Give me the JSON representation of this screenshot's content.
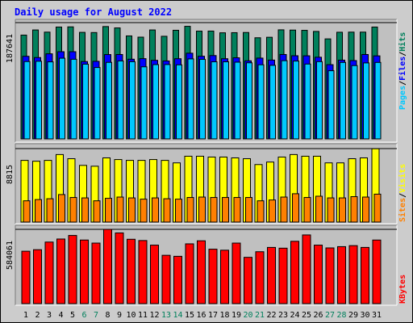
{
  "chart_data": [
    {
      "type": "bar",
      "title": "Daily usage for August 2022",
      "panel": "hits-files-pages",
      "categories": [
        "1",
        "2",
        "3",
        "4",
        "5",
        "6",
        "7",
        "8",
        "9",
        "10",
        "11",
        "12",
        "13",
        "14",
        "15",
        "16",
        "17",
        "18",
        "19",
        "20",
        "21",
        "22",
        "23",
        "24",
        "25",
        "26",
        "27",
        "28",
        "29",
        "30",
        "31"
      ],
      "weekend_days": [
        "6",
        "7",
        "13",
        "14",
        "20",
        "21",
        "27",
        "28"
      ],
      "ymax_label": "187641",
      "ylim": [
        0,
        187641
      ],
      "series": [
        {
          "name": "Hits",
          "color": "#00805c",
          "values": [
            167500,
            175800,
            172300,
            180500,
            180800,
            171900,
            171600,
            181300,
            179100,
            166200,
            164200,
            175800,
            165600,
            175300,
            181700,
            173900,
            174000,
            171200,
            171400,
            171700,
            163200,
            164000,
            176000,
            175600,
            175200,
            173400,
            161400,
            172100,
            172300,
            172300,
            180500
          ]
        },
        {
          "name": "Files",
          "color": "#0000ff",
          "values": [
            133300,
            131300,
            137300,
            140700,
            140700,
            124800,
            125200,
            136100,
            136200,
            128600,
            129500,
            126800,
            125800,
            129400,
            138300,
            133400,
            134500,
            129400,
            130900,
            126000,
            130400,
            127200,
            136200,
            134200,
            134100,
            131800,
            119800,
            127100,
            126400,
            136200,
            134000
          ]
        },
        {
          "name": "Pages",
          "color": "#00c8ff",
          "values": [
            124800,
            125300,
            124300,
            130200,
            128500,
            120600,
            115200,
            123500,
            125800,
            124600,
            116300,
            119900,
            120000,
            119500,
            129100,
            128400,
            124400,
            124400,
            123800,
            122800,
            119600,
            118700,
            126200,
            125600,
            120800,
            124700,
            110000,
            123400,
            118300,
            122600,
            123400
          ]
        }
      ]
    },
    {
      "type": "bar",
      "panel": "visits-sites",
      "categories": [
        "1",
        "2",
        "3",
        "4",
        "5",
        "6",
        "7",
        "8",
        "9",
        "10",
        "11",
        "12",
        "13",
        "14",
        "15",
        "16",
        "17",
        "18",
        "19",
        "20",
        "21",
        "22",
        "23",
        "24",
        "25",
        "26",
        "27",
        "28",
        "29",
        "30",
        "31"
      ],
      "ymax_label": "8815",
      "ylim": [
        0,
        8815
      ],
      "series": [
        {
          "name": "Visits",
          "color": "#ffff00",
          "values": [
            7400,
            7300,
            7400,
            8100,
            7600,
            6800,
            6700,
            7700,
            7500,
            7400,
            7400,
            7500,
            7400,
            7100,
            7900,
            7900,
            7800,
            7800,
            7700,
            7600,
            6900,
            7200,
            7800,
            8100,
            7900,
            7900,
            7100,
            7100,
            7600,
            7700,
            8800
          ]
        },
        {
          "name": "Sites",
          "color": "#ff8000",
          "values": [
            2550,
            2700,
            2800,
            3300,
            2950,
            2900,
            2550,
            2850,
            3000,
            2900,
            2750,
            2900,
            2800,
            2750,
            2950,
            3000,
            2950,
            2950,
            2950,
            2950,
            2550,
            2650,
            3000,
            3400,
            2950,
            3100,
            2900,
            2900,
            3050,
            3000,
            3350
          ]
        }
      ]
    },
    {
      "type": "bar",
      "panel": "kbytes",
      "categories": [
        "1",
        "2",
        "3",
        "4",
        "5",
        "6",
        "7",
        "8",
        "9",
        "10",
        "11",
        "12",
        "13",
        "14",
        "15",
        "16",
        "17",
        "18",
        "19",
        "20",
        "21",
        "22",
        "23",
        "24",
        "25",
        "26",
        "27",
        "28",
        "29",
        "30",
        "31"
      ],
      "ymax_label": "584061",
      "ylim": [
        0,
        584061
      ],
      "series": [
        {
          "name": "KBytes",
          "color": "#ff0000",
          "values": [
            412000,
            424000,
            484000,
            508000,
            536000,
            500000,
            476000,
            584000,
            556000,
            506000,
            496000,
            460000,
            380000,
            372000,
            470000,
            494000,
            428000,
            420000,
            476000,
            364000,
            408000,
            442000,
            436000,
            490000,
            540000,
            460000,
            438000,
            448000,
            456000,
            442000,
            500000
          ]
        }
      ]
    }
  ],
  "legend": {
    "top": [
      {
        "label": "Pages",
        "color": "#00c8ff"
      },
      {
        "label": "/",
        "color": "#000000"
      },
      {
        "label": "Files",
        "color": "#0000ff"
      },
      {
        "label": "/",
        "color": "#000000"
      },
      {
        "label": "Hits",
        "color": "#00805c"
      }
    ],
    "middle": [
      {
        "label": "Sites",
        "color": "#ff8000"
      },
      {
        "label": "/",
        "color": "#000000"
      },
      {
        "label": "Visits",
        "color": "#ffff00"
      }
    ],
    "bottom": [
      {
        "label": "KBytes",
        "color": "#ff0000"
      }
    ]
  },
  "colors": {
    "background": "#cccccc",
    "plot_background": "#c0c0c0",
    "title": "#0000ff",
    "weekday_label": "#000000",
    "weekend_label": "#00805c"
  }
}
